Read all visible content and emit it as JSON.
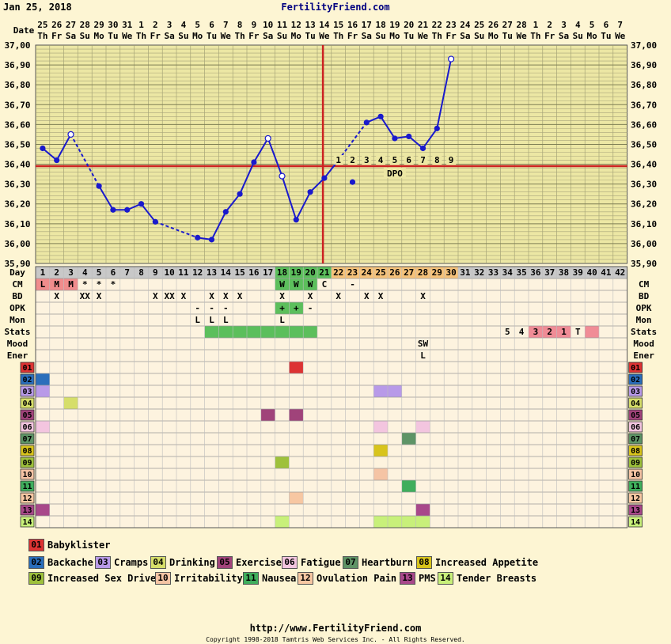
{
  "header": {
    "date": "Jan 25, 2018",
    "site": "FertilityFriend.com"
  },
  "footer": {
    "url": "http://www.FertilityFriend.com",
    "copyright": "Copyright 1998-2018 Tamtris Web Services Inc. - All Rights Reserved."
  },
  "chart_data": {
    "type": "line",
    "title": "",
    "ylim": [
      35.9,
      37.0
    ],
    "y_ticks": [
      "35,90",
      "36,00",
      "36,10",
      "36,20",
      "36,30",
      "36,40",
      "36,50",
      "36,60",
      "36,70",
      "36,80",
      "36,90",
      "37,00"
    ],
    "dates": [
      "25",
      "26",
      "27",
      "28",
      "29",
      "30",
      "31",
      "1",
      "2",
      "3",
      "4",
      "5",
      "6",
      "7",
      "8",
      "9",
      "10",
      "11",
      "12",
      "13",
      "14",
      "15",
      "16",
      "17",
      "18",
      "19",
      "20",
      "21",
      "22",
      "23",
      "24",
      "25",
      "26",
      "27",
      "28",
      "1",
      "2",
      "3",
      "4",
      "5",
      "6",
      "7"
    ],
    "weekdays": [
      "Th",
      "Fr",
      "Sa",
      "Su",
      "Mo",
      "Tu",
      "We",
      "Th",
      "Fr",
      "Sa",
      "Su",
      "Mo",
      "Tu",
      "We",
      "Th",
      "Fr",
      "Sa",
      "Su",
      "Mo",
      "Tu",
      "We",
      "Th",
      "Fr",
      "Sa",
      "Su",
      "Mo",
      "Tu",
      "We",
      "Th",
      "Fr",
      "Sa",
      "Su",
      "Mo",
      "Tu",
      "We",
      "Th",
      "Fr",
      "Sa",
      "Su",
      "Mo",
      "Tu",
      "We"
    ],
    "row_labels": {
      "date": "Date",
      "day": "Day",
      "cm": "CM",
      "bd": "BD",
      "opk": "OPK",
      "mon": "Mon",
      "stats": "Stats",
      "mood": "Mood",
      "ener": "Ener"
    },
    "temps": [
      {
        "day": 1,
        "temp": 36.48
      },
      {
        "day": 2,
        "temp": 36.42
      },
      {
        "day": 3,
        "temp": 36.55,
        "open": true
      },
      {
        "day": 5,
        "temp": 36.29
      },
      {
        "day": 6,
        "temp": 36.17
      },
      {
        "day": 7,
        "temp": 36.17
      },
      {
        "day": 8,
        "temp": 36.2
      },
      {
        "day": 9,
        "temp": 36.11
      },
      {
        "day": 12,
        "temp": 36.03
      },
      {
        "day": 13,
        "temp": 36.02
      },
      {
        "day": 14,
        "temp": 36.16
      },
      {
        "day": 15,
        "temp": 36.25
      },
      {
        "day": 16,
        "temp": 36.41
      },
      {
        "day": 17,
        "temp": 36.53,
        "open": true
      },
      {
        "day": 18,
        "temp": 36.34,
        "open": true
      },
      {
        "day": 19,
        "temp": 36.12
      },
      {
        "day": 20,
        "temp": 36.26
      },
      {
        "day": 21,
        "temp": 36.33
      },
      {
        "day": 22,
        "temp": 36.42
      },
      {
        "day": 24,
        "temp": 36.61
      },
      {
        "day": 25,
        "temp": 36.64
      },
      {
        "day": 26,
        "temp": 36.53
      },
      {
        "day": 27,
        "temp": 36.54
      },
      {
        "day": 28,
        "temp": 36.48
      },
      {
        "day": 29,
        "temp": 36.58
      },
      {
        "day": 30,
        "temp": 36.93,
        "open": true
      }
    ],
    "extra_points": [
      {
        "day": 23,
        "temp": 36.31
      }
    ],
    "dashed_segments": [
      [
        3,
        5
      ],
      [
        9,
        12
      ],
      [
        22,
        24
      ]
    ],
    "coverline": 36.39,
    "ovulation_day": 21,
    "dpo_numbers": [
      "1",
      "2",
      "3",
      "4",
      "5",
      "6",
      "7",
      "8",
      "9"
    ],
    "dpo_start_day": 22,
    "dpo_label": "DPO",
    "day_count": 42,
    "cm": {
      "1": "L",
      "2": "M",
      "3": "M",
      "4": "*",
      "5": "*",
      "6": "*",
      "18": "W",
      "19": "W",
      "20": "W",
      "21": "C",
      "23": "-"
    },
    "cm_colors": {
      "L": "#f08c8c",
      "M": "#f08c8c",
      "W": "#5cbf5c"
    },
    "bd": {
      "2": "X",
      "4": "XX",
      "5": "X",
      "9": "X",
      "10": "XX",
      "11": "X",
      "13": "X",
      "14": "X",
      "15": "X",
      "18": "X",
      "20": "X",
      "22": "X",
      "24": "X",
      "25": "X",
      "28": "X"
    },
    "opk": {
      "18": "+",
      "19": "+",
      "20": "-"
    },
    "opk_colors": {
      "+": "#5cbf5c"
    },
    "mon_dash": {
      "12": "-",
      "13": "-",
      "14": "-"
    },
    "mon": {
      "12": "L",
      "13": "L",
      "14": "L",
      "18": "L"
    },
    "stats_green": [
      13,
      14,
      15,
      16,
      17,
      18,
      19,
      20
    ],
    "stats_text": {
      "34": "5",
      "35": "4",
      "36": "3",
      "37": "2",
      "38": "1",
      "39": "T"
    },
    "stats_pink": [
      36,
      37,
      38,
      40
    ],
    "mood": {
      "28": "SW"
    },
    "ener": {
      "28": "L"
    },
    "symptom_codes": [
      "01",
      "02",
      "03",
      "04",
      "05",
      "06",
      "07",
      "08",
      "09",
      "10",
      "11",
      "12",
      "13",
      "14"
    ],
    "symptoms": {
      "01": [
        19
      ],
      "02": [
        1
      ],
      "03": [
        1,
        25,
        26
      ],
      "04": [
        3
      ],
      "05": [
        17,
        19
      ],
      "06": [
        1,
        25,
        28
      ],
      "07": [
        27
      ],
      "08": [
        25
      ],
      "09": [
        18
      ],
      "10": [
        25
      ],
      "11": [
        27
      ],
      "12": [
        19
      ],
      "13": [
        1,
        28
      ],
      "14": [
        18,
        25,
        26,
        27,
        28
      ]
    },
    "colors": {
      "01": "#dd3333",
      "02": "#2a6ebb",
      "03": "#b89ae8",
      "04": "#d6de6a",
      "05": "#a0437a",
      "06": "#f3c5df",
      "07": "#5e9466",
      "08": "#d8c41c",
      "09": "#9ec13b",
      "10": "#f5c4a4",
      "11": "#3fae5c",
      "12": "#f7c7a2",
      "13": "#a8488a",
      "14": "#c8f07a"
    },
    "legend": [
      {
        "code": "01",
        "label": "Babyklister"
      },
      {
        "code": "02",
        "label": "Backache"
      },
      {
        "code": "03",
        "label": "Cramps"
      },
      {
        "code": "04",
        "label": "Drinking"
      },
      {
        "code": "05",
        "label": "Exercise"
      },
      {
        "code": "06",
        "label": "Fatigue"
      },
      {
        "code": "07",
        "label": "Heartburn"
      },
      {
        "code": "08",
        "label": "Increased Appetite"
      },
      {
        "code": "09",
        "label": "Increased Sex Drive"
      },
      {
        "code": "10",
        "label": "Irritability"
      },
      {
        "code": "11",
        "label": "Nausea"
      },
      {
        "code": "12",
        "label": "Ovulation Pain"
      },
      {
        "code": "13",
        "label": "PMS"
      },
      {
        "code": "14",
        "label": "Tender Breasts"
      }
    ]
  }
}
